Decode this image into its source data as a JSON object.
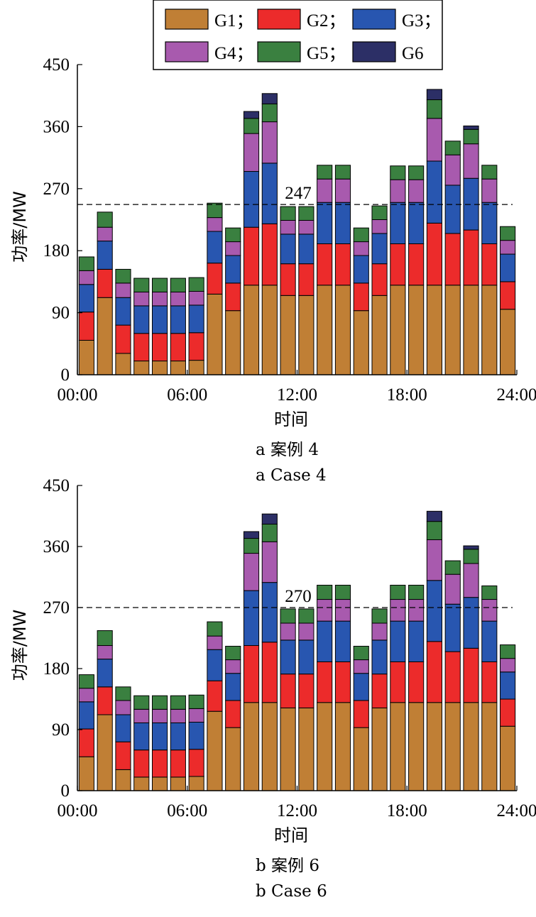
{
  "legend": {
    "entries": [
      {
        "label": "G1；",
        "color": "#c07f35"
      },
      {
        "label": "G2；",
        "color": "#ec2b2b"
      },
      {
        "label": "G3；",
        "color": "#2856b0"
      },
      {
        "label": "G4；",
        "color": "#a85aae"
      },
      {
        "label": "G5；",
        "color": "#3a8040"
      },
      {
        "label": "G6",
        "color": "#2c2f66"
      }
    ]
  },
  "chart_data": [
    {
      "type": "bar",
      "stacked": true,
      "ylabel": "功率/MW",
      "xlabel": "时间",
      "ylim": [
        0,
        450
      ],
      "yticks": [
        "0",
        "90",
        "180",
        "270",
        "360",
        "450"
      ],
      "xticks": [
        "00:00",
        "06:00",
        "12:00",
        "18:00",
        "24:00"
      ],
      "reference_line": {
        "value": 247,
        "label": "247"
      },
      "caption_cn": "a  案例 4",
      "caption_en": "a  Case  4",
      "series": [
        {
          "name": "G1",
          "values": [
            50,
            112,
            31,
            20,
            20,
            20,
            21,
            117,
            93,
            130,
            130,
            115,
            115,
            130,
            130,
            93,
            115,
            130,
            130,
            130,
            130,
            130,
            130,
            95
          ]
        },
        {
          "name": "G2",
          "values": [
            41,
            41,
            41,
            40,
            40,
            40,
            40,
            45,
            40,
            84,
            89,
            46,
            46,
            60,
            60,
            40,
            46,
            60,
            60,
            90,
            75,
            80,
            60,
            40
          ]
        },
        {
          "name": "G3",
          "values": [
            40,
            41,
            40,
            40,
            40,
            40,
            40,
            46,
            40,
            81,
            88,
            43,
            43,
            60,
            60,
            40,
            44,
            60,
            60,
            90,
            70,
            75,
            60,
            40
          ]
        },
        {
          "name": "G4",
          "values": [
            20,
            20,
            21,
            20,
            20,
            20,
            20,
            20,
            20,
            55,
            60,
            20,
            20,
            34,
            34,
            20,
            20,
            33,
            33,
            62,
            44,
            50,
            34,
            20
          ]
        },
        {
          "name": "G5",
          "values": [
            20,
            22,
            20,
            20,
            20,
            20,
            20,
            21,
            20,
            22,
            26,
            20,
            20,
            20,
            20,
            20,
            20,
            20,
            20,
            27,
            20,
            21,
            20,
            20
          ]
        },
        {
          "name": "G6",
          "values": [
            0,
            0,
            0,
            0,
            0,
            0,
            0,
            0,
            0,
            10,
            15,
            0,
            0,
            0,
            0,
            0,
            0,
            0,
            0,
            15,
            0,
            5,
            0,
            0
          ]
        }
      ]
    },
    {
      "type": "bar",
      "stacked": true,
      "ylabel": "功率/MW",
      "xlabel": "时间",
      "ylim": [
        0,
        450
      ],
      "yticks": [
        "0",
        "90",
        "180",
        "270",
        "360",
        "450"
      ],
      "xticks": [
        "00:00",
        "06:00",
        "12:00",
        "18:00",
        "24:00"
      ],
      "reference_line": {
        "value": 270,
        "label": "270"
      },
      "caption_cn": "b  案例 6",
      "caption_en": "b  Case  6",
      "series": [
        {
          "name": "G1",
          "values": [
            50,
            112,
            31,
            20,
            20,
            20,
            21,
            117,
            93,
            130,
            130,
            122,
            122,
            130,
            130,
            93,
            122,
            130,
            130,
            130,
            130,
            130,
            130,
            95
          ]
        },
        {
          "name": "G2",
          "values": [
            41,
            41,
            41,
            40,
            40,
            40,
            40,
            45,
            40,
            84,
            89,
            50,
            50,
            60,
            60,
            40,
            50,
            60,
            60,
            90,
            75,
            80,
            60,
            40
          ]
        },
        {
          "name": "G3",
          "values": [
            40,
            41,
            40,
            40,
            40,
            40,
            40,
            46,
            40,
            81,
            88,
            50,
            50,
            60,
            60,
            40,
            50,
            60,
            60,
            90,
            70,
            75,
            60,
            40
          ]
        },
        {
          "name": "G4",
          "values": [
            20,
            20,
            21,
            20,
            20,
            20,
            20,
            20,
            20,
            55,
            60,
            25,
            25,
            32,
            32,
            20,
            25,
            32,
            32,
            60,
            44,
            50,
            32,
            20
          ]
        },
        {
          "name": "G5",
          "values": [
            20,
            22,
            20,
            20,
            20,
            20,
            20,
            21,
            20,
            22,
            26,
            21,
            21,
            21,
            21,
            20,
            21,
            21,
            21,
            27,
            20,
            21,
            20,
            20
          ]
        },
        {
          "name": "G6",
          "values": [
            0,
            0,
            0,
            0,
            0,
            0,
            0,
            0,
            0,
            10,
            15,
            0,
            0,
            0,
            0,
            0,
            0,
            0,
            0,
            15,
            0,
            5,
            0,
            0
          ]
        }
      ]
    }
  ]
}
